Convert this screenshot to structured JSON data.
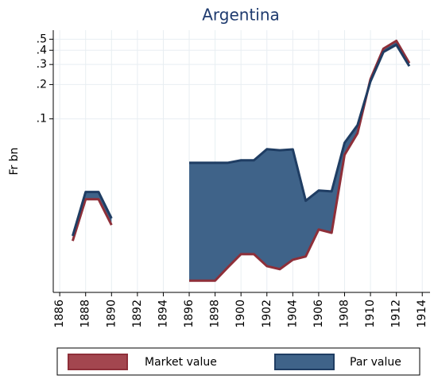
{
  "chart_data": {
    "type": "area-range",
    "title": "Argentina",
    "y_label": "Fr bn",
    "log_y": true,
    "grid": true,
    "legend_position": "bottom",
    "x": [
      1887,
      1888,
      1889,
      1890,
      1891,
      1892,
      1893,
      1894,
      1895,
      1896,
      1897,
      1898,
      1899,
      1900,
      1901,
      1902,
      1903,
      1904,
      1905,
      1906,
      1907,
      1908,
      1909,
      1910,
      1911,
      1912,
      1913
    ],
    "series": [
      {
        "name": "Market value",
        "color": "#a3464f",
        "values": [
          0.0085,
          0.0197,
          0.0197,
          0.0117,
          null,
          null,
          null,
          null,
          null,
          0.0038,
          0.0038,
          0.0038,
          0.005,
          0.0065,
          0.0065,
          0.0051,
          0.0048,
          0.0058,
          0.0062,
          0.0107,
          0.01,
          0.0484,
          0.0748,
          0.223,
          0.413,
          0.484,
          0.309
        ]
      },
      {
        "name": "Par value",
        "color": "#3f6389",
        "values": [
          0.0094,
          0.0228,
          0.0228,
          0.0134,
          null,
          null,
          null,
          null,
          null,
          0.0412,
          0.0412,
          0.0412,
          0.0412,
          0.0433,
          0.0433,
          0.0542,
          0.053,
          0.054,
          0.0191,
          0.0235,
          0.0231,
          0.0616,
          0.088,
          0.213,
          0.386,
          0.447,
          0.29
        ]
      }
    ],
    "xlim": [
      1885.5,
      1914.6
    ],
    "xticks": [
      1886,
      1888,
      1890,
      1892,
      1894,
      1896,
      1898,
      1900,
      1902,
      1904,
      1906,
      1908,
      1910,
      1912,
      1914
    ],
    "ylim": [
      0.003,
      0.6
    ],
    "yticks": [
      {
        "value": 0.1,
        "label": ".1"
      },
      {
        "value": 0.2,
        "label": ".2"
      },
      {
        "value": 0.3,
        "label": ".3"
      },
      {
        "value": 0.4,
        "label": ".4"
      },
      {
        "value": 0.5,
        "label": ".5"
      }
    ]
  }
}
